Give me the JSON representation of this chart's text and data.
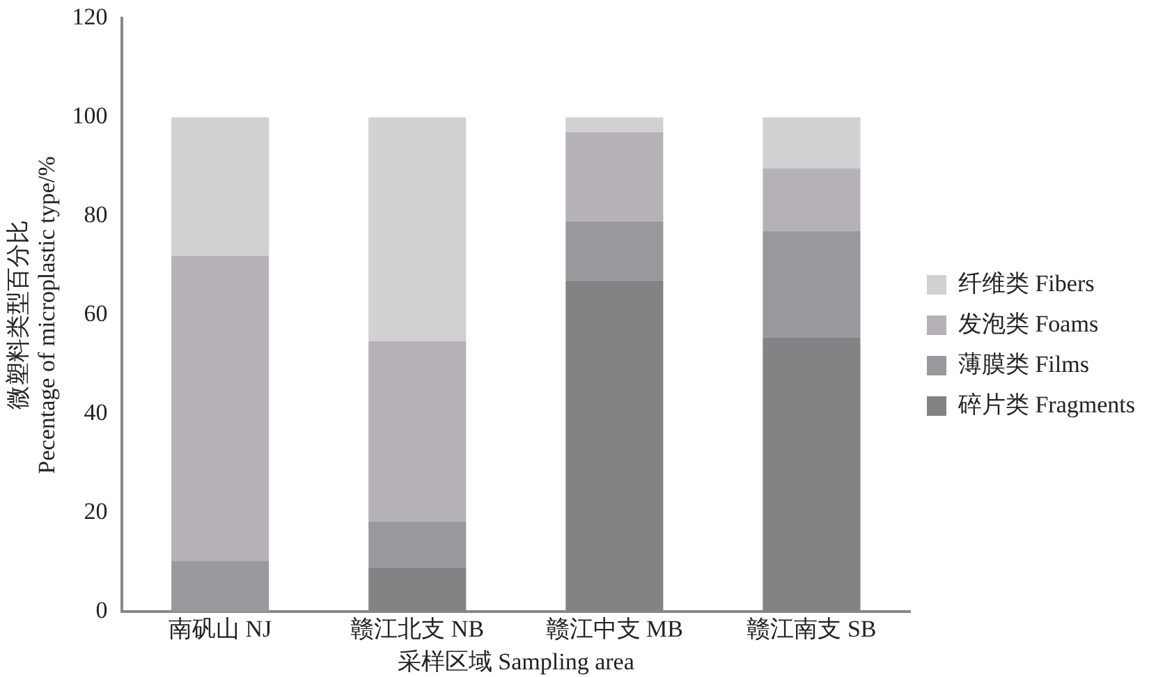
{
  "chart_data": {
    "type": "bar",
    "stacked": true,
    "xlabel": "采样区域 Sampling area",
    "ylabel": "微塑料类型百分比\nPecentage of microplastic type/%",
    "categories": [
      "南矾山 NJ",
      "赣江北支 NB",
      "赣江中支 MB",
      "赣江南支 SB"
    ],
    "series": [
      {
        "name": "碎片类 Fragments",
        "color": "#848285",
        "values": [
          0,
          9,
          67,
          55.5
        ]
      },
      {
        "name": "薄膜类 Films",
        "color": "#99989c",
        "values": [
          10.3,
          9.3,
          12,
          21.5
        ]
      },
      {
        "name": "发泡类 Foams",
        "color": "#b5b1b6",
        "values": [
          61.7,
          36.4,
          18,
          12.7
        ]
      },
      {
        "name": "纤维类 Fibers",
        "color": "#d1d0d3",
        "values": [
          28,
          45.3,
          3,
          10.3
        ]
      }
    ],
    "ylim": [
      0,
      120
    ],
    "yticks": [
      0,
      20,
      40,
      60,
      80,
      100,
      120
    ],
    "grid": false,
    "legend": "right"
  }
}
